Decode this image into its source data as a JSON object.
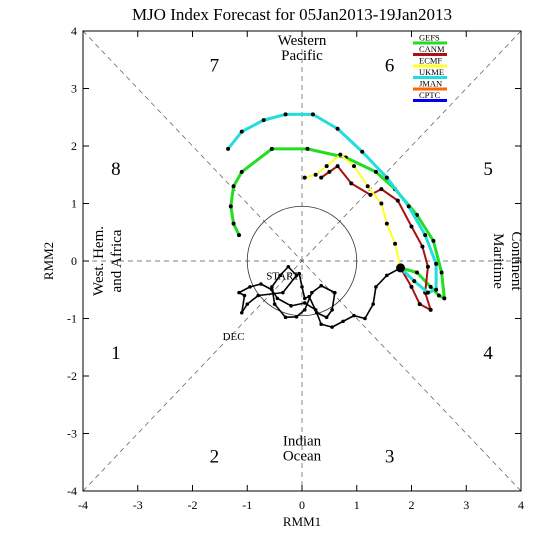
{
  "chart_data": {
    "type": "line",
    "title": "MJO Index Forecast for 05Jan2013-19Jan2013",
    "xlabel": "RMM1",
    "ylabel": "RMM2",
    "xlim": [
      -4,
      4
    ],
    "ylim": [
      -4,
      4
    ],
    "x_ticks": [
      "-4",
      "-3",
      "-2",
      "-1",
      "0",
      "1",
      "2",
      "3",
      "4"
    ],
    "y_ticks": [
      "-4",
      "-3",
      "-2",
      "-1",
      "0",
      "1",
      "2",
      "3",
      "4"
    ],
    "phases": [
      {
        "label": "1",
        "x": -3.4,
        "y": -1.6
      },
      {
        "label": "2",
        "x": -1.6,
        "y": -3.4
      },
      {
        "label": "3",
        "x": 1.6,
        "y": -3.4
      },
      {
        "label": "4",
        "x": 3.4,
        "y": -1.6
      },
      {
        "label": "5",
        "x": 3.4,
        "y": 1.6
      },
      {
        "label": "6",
        "x": 1.6,
        "y": 3.4
      },
      {
        "label": "7",
        "x": -1.6,
        "y": 3.4
      },
      {
        "label": "8",
        "x": -3.4,
        "y": 1.6
      }
    ],
    "regions": {
      "top": [
        "Western",
        "Pacific"
      ],
      "bottom": [
        "Indian",
        "Ocean"
      ],
      "left": [
        "West. Hem.",
        "and Africa"
      ],
      "right": [
        "Maritime",
        "Continent"
      ]
    },
    "legend": {
      "placement": "top-right",
      "entries": [
        {
          "name": "GEFS",
          "color": "#22dd22"
        },
        {
          "name": "CANM",
          "color": "#aa1111"
        },
        {
          "name": "ECMF",
          "color": "#ffff22"
        },
        {
          "name": "UKME",
          "color": "#22dddd"
        },
        {
          "name": "JMAN",
          "color": "#ff6600"
        },
        {
          "name": "CPTC",
          "color": "#0000ee"
        }
      ]
    },
    "observed": {
      "color": "#000000",
      "start_label": "START",
      "month_label": "DEC",
      "points": [
        [
          -0.05,
          -0.22,
          ""
        ],
        [
          0.0,
          -0.45,
          ""
        ],
        [
          0.05,
          -0.65,
          ""
        ],
        [
          0.13,
          -0.62,
          ""
        ],
        [
          0.27,
          -0.9,
          ""
        ],
        [
          0.45,
          -0.98,
          ""
        ],
        [
          0.55,
          -0.85,
          ""
        ],
        [
          0.6,
          -0.55,
          ""
        ],
        [
          0.35,
          -0.43,
          ""
        ],
        [
          0.18,
          -0.55,
          ""
        ],
        [
          0.05,
          -0.85,
          ""
        ],
        [
          -0.1,
          -0.97,
          ""
        ],
        [
          -0.3,
          -0.98,
          ""
        ],
        [
          -0.5,
          -0.75,
          ""
        ],
        [
          -0.55,
          -0.45,
          ""
        ],
        [
          -0.4,
          -0.25,
          ""
        ],
        [
          -0.25,
          -0.1,
          ""
        ],
        [
          -0.1,
          -0.25,
          ""
        ],
        [
          -0.35,
          -0.55,
          ""
        ],
        [
          -0.8,
          -0.6,
          ""
        ],
        [
          -1.0,
          -0.75,
          ""
        ],
        [
          -1.1,
          -0.9,
          ""
        ],
        [
          -1.05,
          -0.6,
          ""
        ],
        [
          -1.15,
          -0.55,
          ""
        ],
        [
          -0.95,
          -0.45,
          ""
        ],
        [
          -0.75,
          -0.4,
          ""
        ],
        [
          -0.55,
          -0.5,
          ""
        ],
        [
          -0.45,
          -0.65,
          ""
        ],
        [
          -0.2,
          -0.78,
          ""
        ],
        [
          0.05,
          -0.73,
          ""
        ],
        [
          0.25,
          -0.85,
          ""
        ],
        [
          0.35,
          -1.1,
          ""
        ],
        [
          0.55,
          -1.15,
          ""
        ],
        [
          0.75,
          -1.05,
          ""
        ],
        [
          0.95,
          -0.95,
          ""
        ],
        [
          1.15,
          -1.0,
          ""
        ],
        [
          1.3,
          -0.75,
          ""
        ],
        [
          1.35,
          -0.45,
          ""
        ],
        [
          1.55,
          -0.25,
          ""
        ],
        [
          1.8,
          -0.12,
          ""
        ]
      ]
    },
    "series": [
      {
        "name": "GEFS",
        "color": "#22dd22",
        "width": 3,
        "x": [
          1.8,
          2.1,
          2.35,
          2.5,
          2.6,
          2.55,
          2.4,
          2.1,
          1.7,
          1.35,
          0.8,
          0.1,
          -0.55,
          -1.1,
          -1.25,
          -1.3,
          -1.25,
          -1.15
        ],
        "y": [
          -0.12,
          -0.2,
          -0.45,
          -0.6,
          -0.65,
          -0.2,
          0.35,
          0.8,
          1.25,
          1.55,
          1.8,
          1.95,
          1.95,
          1.55,
          1.3,
          0.95,
          0.65,
          0.45
        ]
      },
      {
        "name": "CANM",
        "color": "#aa1111",
        "width": 2,
        "x": [
          1.8,
          2.0,
          2.15,
          2.35,
          2.25,
          2.3,
          2.2,
          2.0,
          1.75,
          1.45,
          1.25,
          0.9,
          0.65,
          0.5,
          0.35
        ],
        "y": [
          -0.12,
          -0.45,
          -0.75,
          -0.85,
          -0.55,
          -0.1,
          0.25,
          0.6,
          1.05,
          1.25,
          1.15,
          1.35,
          1.65,
          1.55,
          1.45
        ]
      },
      {
        "name": "ECMF",
        "color": "#ffff22",
        "width": 2,
        "x": [
          1.8,
          1.7,
          1.55,
          1.45,
          1.2,
          0.95,
          0.7,
          0.45,
          0.25,
          0.05
        ],
        "y": [
          -0.12,
          0.3,
          0.65,
          1.0,
          1.3,
          1.65,
          1.85,
          1.65,
          1.5,
          1.45
        ]
      },
      {
        "name": "UKME",
        "color": "#22dddd",
        "width": 3,
        "x": [
          1.8,
          2.05,
          2.3,
          2.45,
          2.45,
          2.25,
          1.95,
          1.55,
          1.1,
          0.65,
          0.2,
          -0.3,
          -0.7,
          -1.1,
          -1.35
        ],
        "y": [
          -0.12,
          -0.35,
          -0.55,
          -0.5,
          -0.05,
          0.45,
          0.95,
          1.45,
          1.9,
          2.3,
          2.55,
          2.55,
          2.45,
          2.25,
          1.95
        ]
      }
    ]
  }
}
